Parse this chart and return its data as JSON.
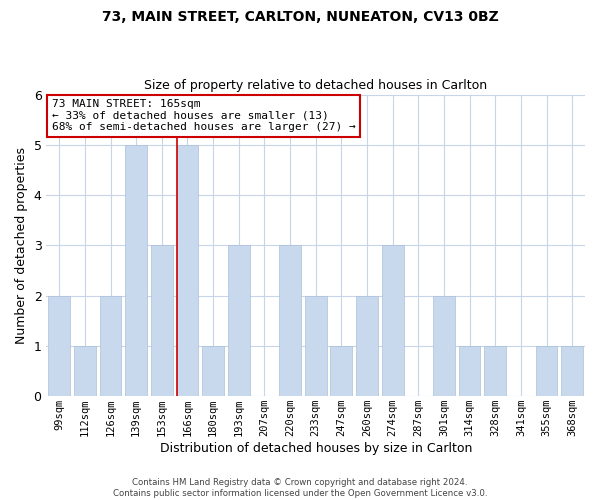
{
  "title": "73, MAIN STREET, CARLTON, NUNEATON, CV13 0BZ",
  "subtitle": "Size of property relative to detached houses in Carlton",
  "xlabel": "Distribution of detached houses by size in Carlton",
  "ylabel": "Number of detached properties",
  "bar_labels": [
    "99sqm",
    "112sqm",
    "126sqm",
    "139sqm",
    "153sqm",
    "166sqm",
    "180sqm",
    "193sqm",
    "207sqm",
    "220sqm",
    "233sqm",
    "247sqm",
    "260sqm",
    "274sqm",
    "287sqm",
    "301sqm",
    "314sqm",
    "328sqm",
    "341sqm",
    "355sqm",
    "368sqm"
  ],
  "bar_values": [
    2,
    1,
    2,
    5,
    3,
    5,
    1,
    3,
    0,
    3,
    2,
    1,
    2,
    3,
    0,
    2,
    1,
    1,
    0,
    1,
    1
  ],
  "bar_color": "#c8d9ee",
  "highlight_bar_index": 5,
  "highlight_line_color": "#cc0000",
  "annotation_title": "73 MAIN STREET: 165sqm",
  "annotation_line1": "← 33% of detached houses are smaller (13)",
  "annotation_line2": "68% of semi-detached houses are larger (27) →",
  "annotation_box_color": "#ffffff",
  "annotation_box_edge_color": "#cc0000",
  "ylim": [
    0,
    6
  ],
  "yticks": [
    0,
    1,
    2,
    3,
    4,
    5,
    6
  ],
  "footer_line1": "Contains HM Land Registry data © Crown copyright and database right 2024.",
  "footer_line2": "Contains public sector information licensed under the Open Government Licence v3.0.",
  "background_color": "#ffffff",
  "grid_color": "#c8d4e8"
}
